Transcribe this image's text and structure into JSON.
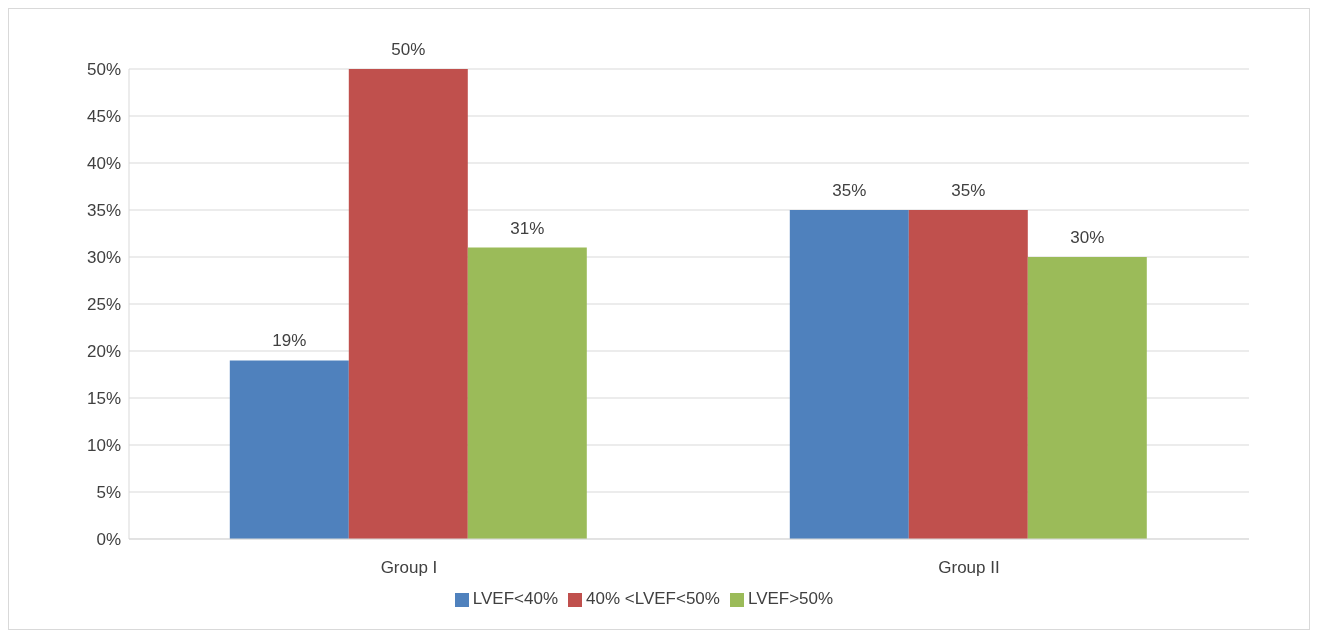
{
  "chart_data": {
    "type": "bar",
    "categories": [
      "Group I",
      "Group II"
    ],
    "series": [
      {
        "name": "LVEF<40%",
        "color": "#4f81bd",
        "values": [
          19,
          35
        ],
        "value_labels": [
          "19%",
          "35%"
        ]
      },
      {
        "name": "40% <LVEF<50%",
        "color": "#c0504d",
        "values": [
          50,
          35
        ],
        "value_labels": [
          "50%",
          "35%"
        ]
      },
      {
        "name": "LVEF>50%",
        "color": "#9bbb59",
        "values": [
          31,
          30
        ],
        "value_labels": [
          "31%",
          "30%"
        ]
      }
    ],
    "ylim": [
      0,
      50
    ],
    "yticks": [
      {
        "value": 0,
        "label": "0%"
      },
      {
        "value": 5,
        "label": "5%"
      },
      {
        "value": 10,
        "label": "10%"
      },
      {
        "value": 15,
        "label": "15%"
      },
      {
        "value": 20,
        "label": "20%"
      },
      {
        "value": 25,
        "label": "25%"
      },
      {
        "value": 30,
        "label": "30%"
      },
      {
        "value": 35,
        "label": "35%"
      },
      {
        "value": 40,
        "label": "40%"
      },
      {
        "value": 45,
        "label": "45%"
      },
      {
        "value": 50,
        "label": "50%"
      }
    ],
    "grid": "y",
    "legend": "bottom"
  }
}
